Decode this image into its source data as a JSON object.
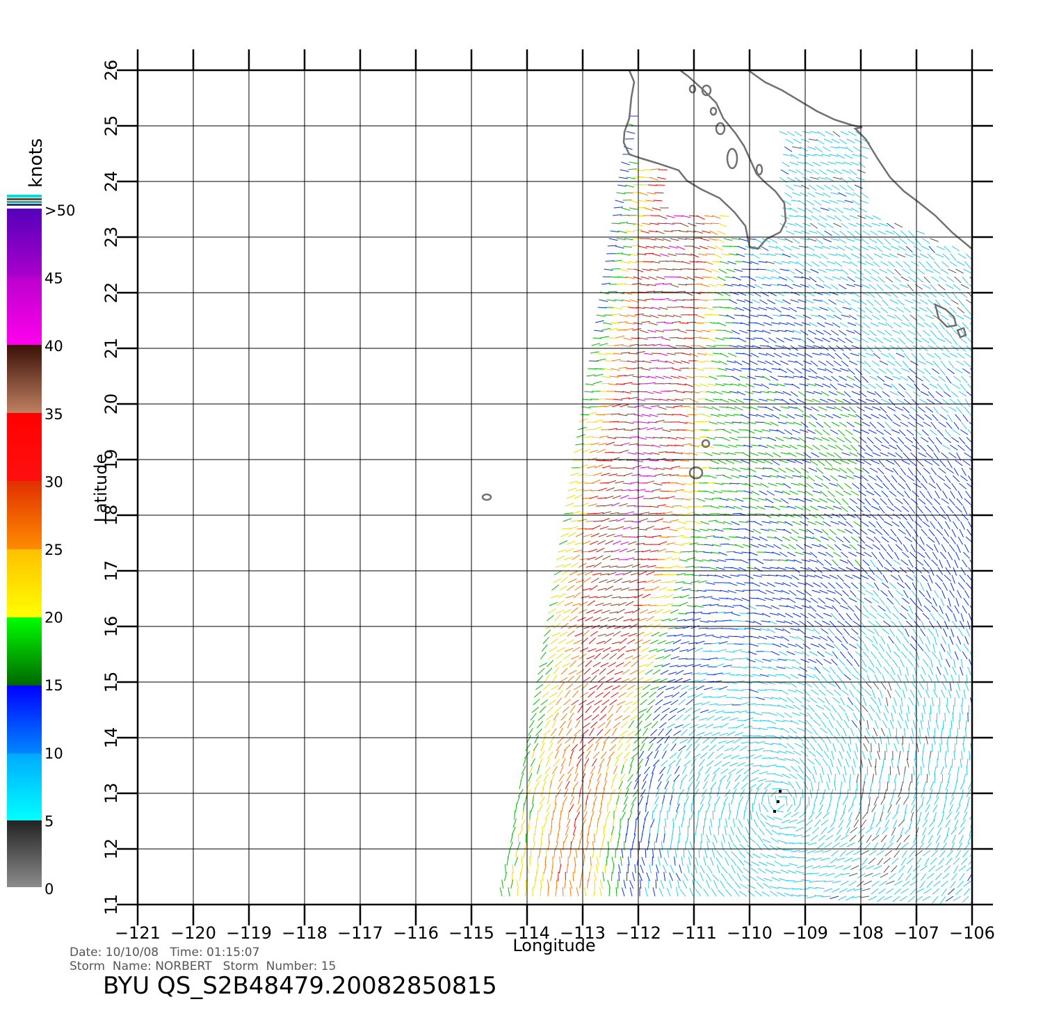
{
  "map": {
    "lon_range": [
      -121,
      -106
    ],
    "lat_range": [
      11,
      26
    ],
    "lon_ticks": [
      "-121",
      "-120",
      "-119",
      "-118",
      "-117",
      "-116",
      "-115",
      "-114",
      "-113",
      "-112",
      "-111",
      "-110",
      "-109",
      "-108",
      "-107",
      "-106"
    ],
    "lat_ticks": [
      "11",
      "12",
      "13",
      "14",
      "15",
      "16",
      "17",
      "18",
      "19",
      "20",
      "21",
      "22",
      "23",
      "24",
      "25",
      "26"
    ],
    "x_label": "Longitude",
    "y_label": "Latitude",
    "grid": true,
    "coast_color": "#707070",
    "storm_center": [
      -109.45,
      12.85
    ]
  },
  "colorbar": {
    "unit": "knots",
    "labels": [
      ">50",
      "45",
      "40",
      "35",
      "30",
      "25",
      "20",
      "15",
      "10",
      "5",
      "0"
    ],
    "label_values": [
      50,
      45,
      40,
      35,
      30,
      25,
      20,
      15,
      10,
      5,
      0
    ],
    "range": [
      0,
      50
    ]
  },
  "info": {
    "date_line": "Date: 10/10/08   Time: 01:15:07",
    "storm_line": "Storm  Name: NORBERT   Storm  Number: 15",
    "product": "BYU  QS_S2B48479.20082850815"
  }
}
